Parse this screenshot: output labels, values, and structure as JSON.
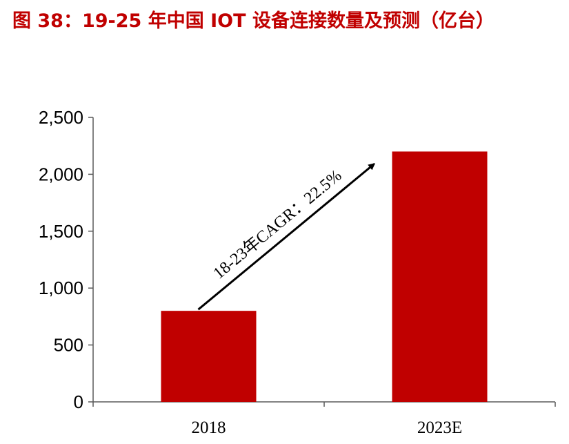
{
  "title": "图 38：19-25 年中国 IOT 设备连接数量及预测（亿台）",
  "colors": {
    "title": "#c00000",
    "bar": "#c00000",
    "axis": "#595959",
    "arrow": "#000000"
  },
  "chart_data": {
    "type": "bar",
    "title": "图 38：19-25 年中国 IOT 设备连接数量及预测（亿台）",
    "categories": [
      "2018",
      "2023E"
    ],
    "values": [
      800,
      2200
    ],
    "ylim": [
      0,
      2500
    ],
    "yticks": [
      0,
      500,
      1000,
      1500,
      2000,
      2500
    ],
    "ytick_labels": [
      "0",
      "500",
      "1,000",
      "1,500",
      "2,000",
      "2,500"
    ],
    "grid": false,
    "legend": "none",
    "annotation": {
      "text": "18-23年CAGR：22.5%",
      "type": "arrow",
      "from_category": "2018",
      "to_category": "2023E"
    }
  }
}
